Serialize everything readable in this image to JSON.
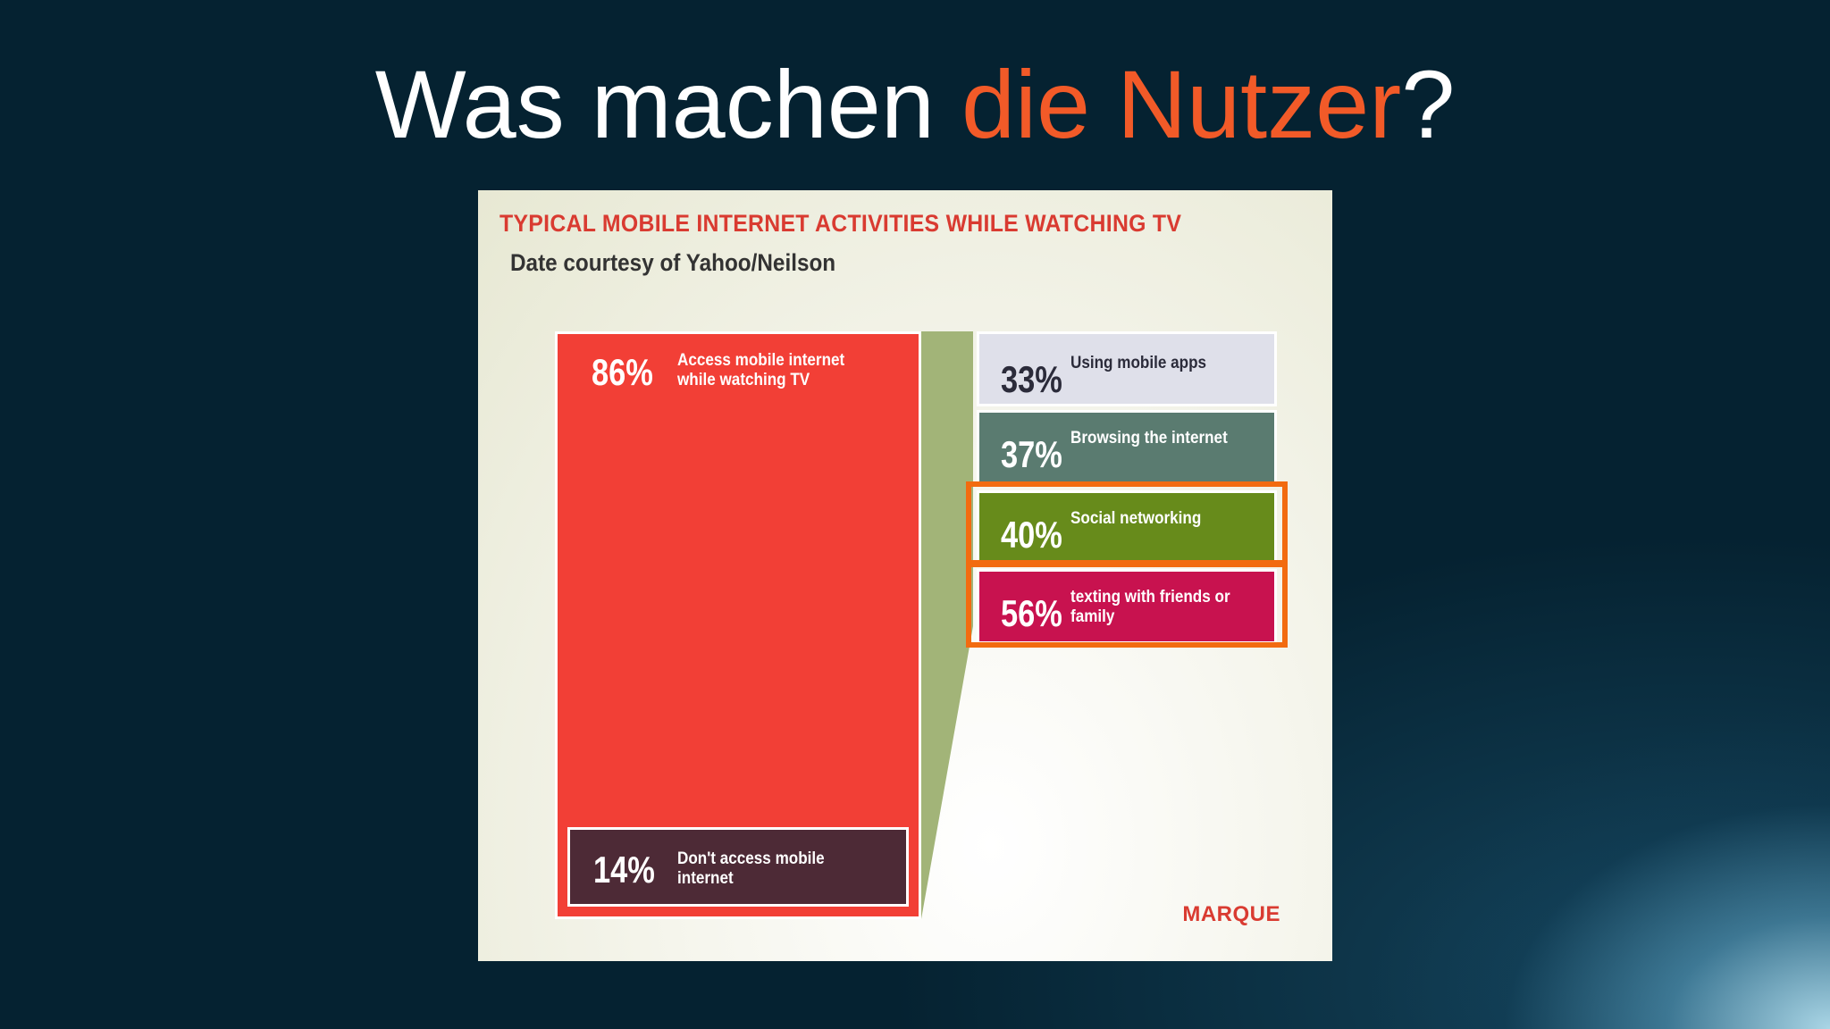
{
  "slide": {
    "title_prefix": "Was machen ",
    "title_accent": "die Nutzer",
    "title_suffix": "?",
    "title_color": "#ffffff",
    "accent_color": "#f25a28"
  },
  "chart_data": {
    "type": "bar",
    "title": "TYPICAL MOBILE INTERNET ACTIVITIES WHILE WATCHING TV",
    "subtitle": "Date courtesy of Yahoo/Neilson",
    "brand": "MARQUE",
    "split": {
      "categories": [
        "Access mobile internet while watching TV",
        "Don't access mobile internet"
      ],
      "values": [
        86,
        14
      ],
      "labels": [
        "86%",
        "14%"
      ],
      "colors": [
        "#f23f36",
        "#4d2a36"
      ]
    },
    "activities": {
      "categories": [
        "Using mobile apps",
        "Browsing the internet",
        "Social networking",
        "texting with friends or family"
      ],
      "values": [
        33,
        37,
        40,
        56
      ],
      "labels": [
        "33%",
        "37%",
        "40%",
        "56%"
      ],
      "colors": [
        "#dfe0ea",
        "#5a7b70",
        "#678b1b",
        "#c8124f"
      ],
      "highlighted": [
        false,
        false,
        true,
        true
      ],
      "highlight_color": "#f26b10"
    },
    "connector_color": "#a2b478"
  }
}
